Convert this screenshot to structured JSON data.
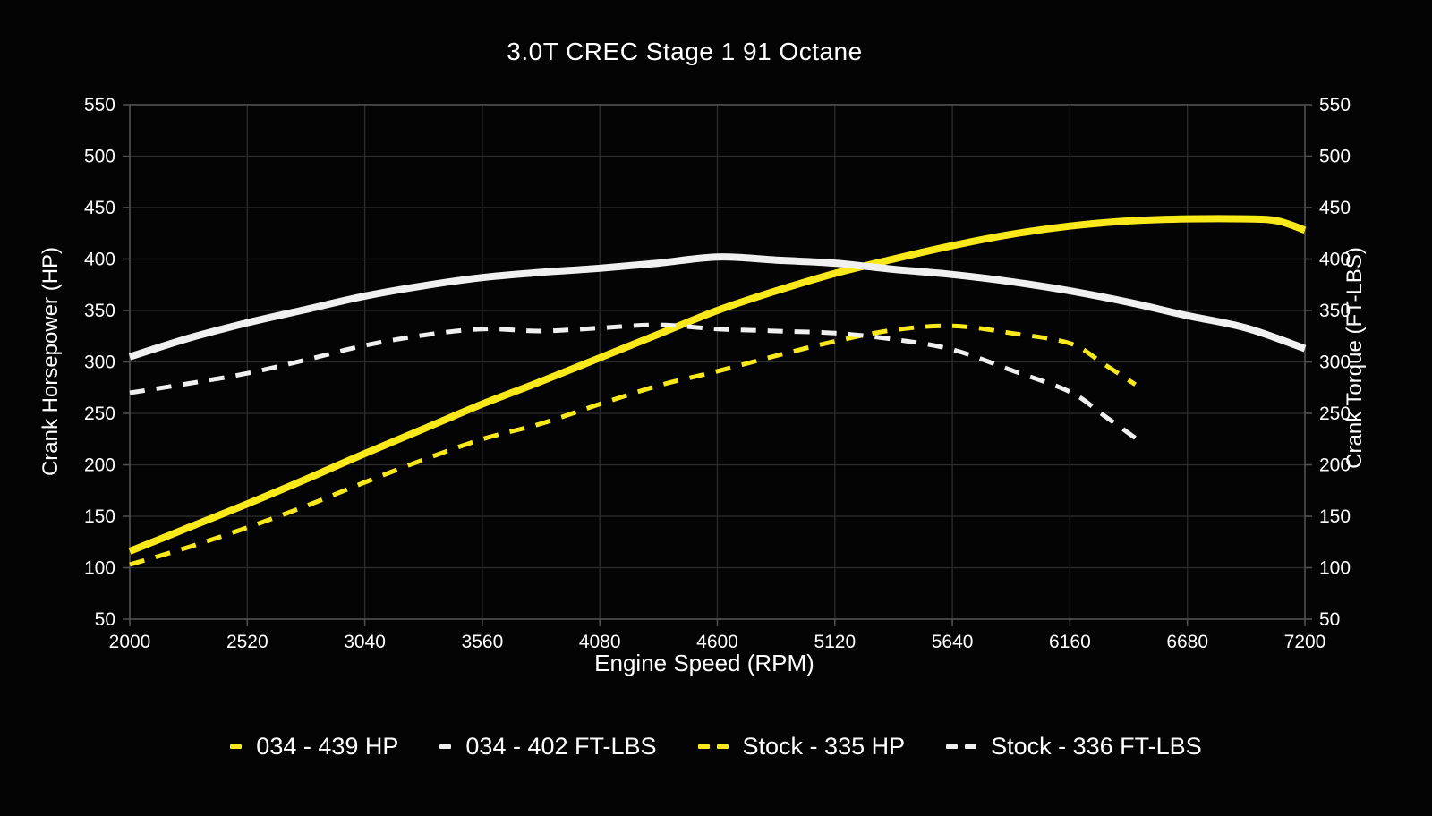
{
  "colors": {
    "background": "#040404",
    "text": "#ffffff",
    "grid": "#2d2d2d",
    "spine": "#4f4f4f",
    "yellow": "#f9e81a",
    "white_line": "#f0f0f0"
  },
  "chart_data": {
    "type": "line",
    "title": "3.0T CREC Stage 1 91 Octane",
    "xlabel": "Engine Speed (RPM)",
    "ylabel_left": "Crank Horsepower (HP)",
    "ylabel_right": "Crank Torque (FT-LBS)",
    "xlim": [
      2000,
      7200
    ],
    "ylim": [
      50,
      550
    ],
    "x_ticks": [
      2000,
      2520,
      3040,
      3560,
      4080,
      4600,
      5120,
      5640,
      6160,
      6680,
      7200
    ],
    "y_ticks_left": [
      50,
      100,
      150,
      200,
      250,
      300,
      350,
      400,
      450,
      500,
      550
    ],
    "y_ticks_right": [
      50,
      100,
      150,
      200,
      250,
      300,
      350,
      400,
      450,
      500,
      550
    ],
    "grid": true,
    "legend_position": "bottom",
    "series": [
      {
        "name": "034 - 439 HP",
        "color_key": "yellow",
        "style": "solid",
        "peak": 439,
        "x": [
          2000,
          2260,
          2520,
          2780,
          3040,
          3300,
          3560,
          3820,
          4080,
          4340,
          4600,
          4860,
          5120,
          5380,
          5640,
          5900,
          6160,
          6420,
          6680,
          6940,
          7080,
          7200
        ],
        "y": [
          116,
          139,
          162,
          186,
          211,
          235,
          259,
          281,
          304,
          327,
          350,
          369,
          386,
          400,
          413,
          424,
          432,
          437,
          439,
          439,
          437,
          428
        ]
      },
      {
        "name": "034 - 402 FT-LBS",
        "color_key": "white_line",
        "style": "solid",
        "peak": 402,
        "x": [
          2000,
          2260,
          2520,
          2780,
          3040,
          3300,
          3560,
          3820,
          4080,
          4340,
          4600,
          4860,
          5120,
          5380,
          5640,
          5900,
          6160,
          6420,
          6680,
          6940,
          7200
        ],
        "y": [
          305,
          323,
          338,
          351,
          364,
          374,
          382,
          387,
          391,
          396,
          402,
          399,
          396,
          390,
          385,
          378,
          369,
          358,
          345,
          333,
          313
        ]
      },
      {
        "name": "Stock - 335 HP",
        "color_key": "yellow",
        "style": "dashed",
        "peak": 335,
        "x": [
          2000,
          2260,
          2520,
          2780,
          3040,
          3300,
          3560,
          3820,
          4080,
          4340,
          4600,
          4860,
          5120,
          5380,
          5640,
          5900,
          6160,
          6310,
          6450
        ],
        "y": [
          103,
          120,
          139,
          160,
          183,
          205,
          225,
          240,
          259,
          277,
          291,
          306,
          320,
          331,
          335,
          328,
          318,
          298,
          278
        ]
      },
      {
        "name": "Stock - 336 FT-LBS",
        "color_key": "white_line",
        "style": "dashed",
        "peak": 336,
        "x": [
          2000,
          2260,
          2520,
          2780,
          3040,
          3300,
          3560,
          3820,
          4080,
          4340,
          4600,
          4860,
          5120,
          5380,
          5640,
          5900,
          6160,
          6310,
          6450
        ],
        "y": [
          270,
          279,
          289,
          302,
          316,
          326,
          332,
          330,
          333,
          336,
          332,
          330,
          328,
          322,
          312,
          292,
          271,
          248,
          226
        ]
      }
    ]
  }
}
